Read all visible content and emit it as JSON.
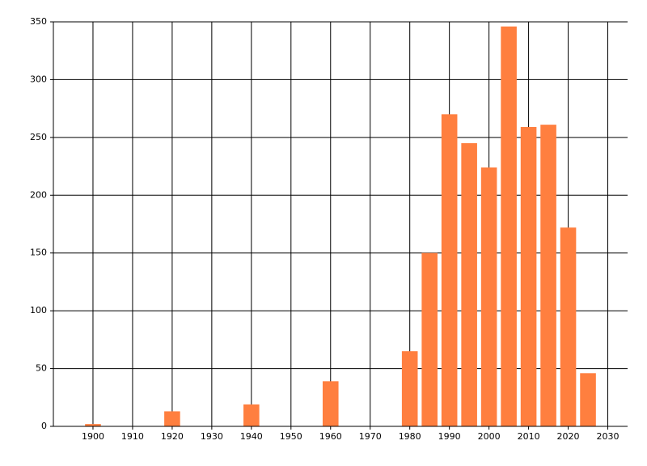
{
  "chart_data": {
    "type": "bar",
    "x": [
      1900,
      1920,
      1940,
      1960,
      1980,
      1985,
      1990,
      1995,
      2000,
      2005,
      2010,
      2015,
      2020,
      2025
    ],
    "values": [
      2,
      13,
      19,
      39,
      65,
      150,
      270,
      245,
      224,
      346,
      259,
      261,
      172,
      46
    ],
    "color": "#ff7f3f",
    "xlim": [
      1890,
      2035
    ],
    "xticks": [
      1900,
      1910,
      1920,
      1930,
      1940,
      1950,
      1960,
      1970,
      1980,
      1990,
      2000,
      2010,
      2020,
      2030
    ],
    "ylim": [
      0,
      350
    ],
    "yticks": [
      0,
      50,
      100,
      150,
      200,
      250,
      300,
      350
    ],
    "grid": true
  }
}
